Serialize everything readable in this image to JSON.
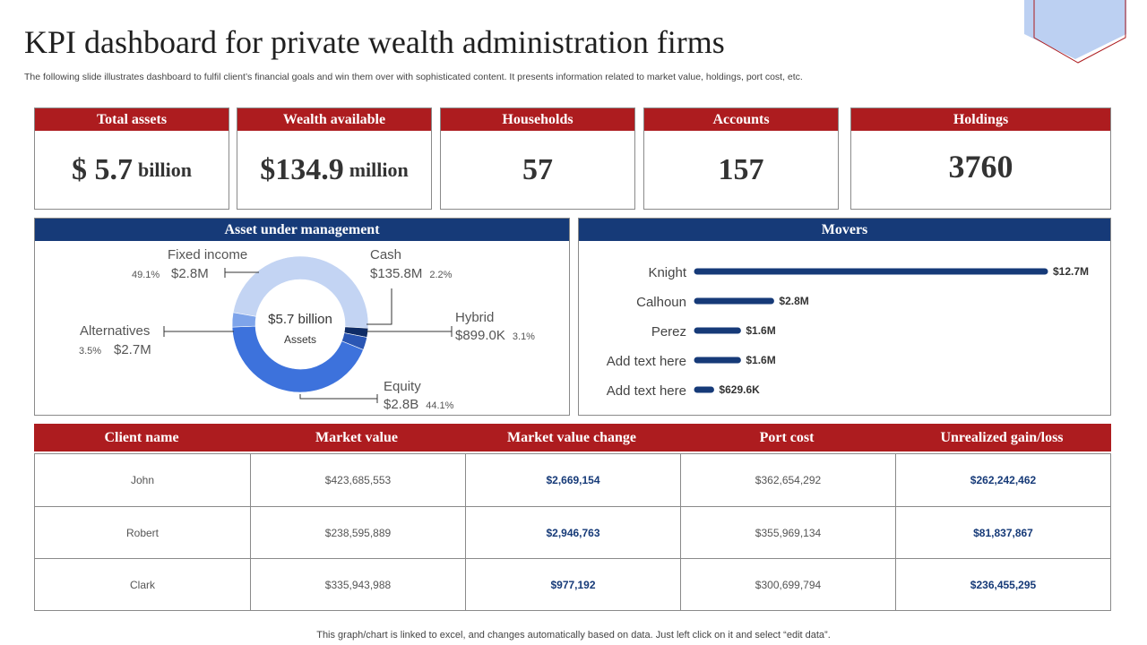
{
  "header": {
    "title": "KPI dashboard for private wealth administration firms",
    "subtitle": "The following slide illustrates dashboard to fulfil client’s financial goals and win them over with sophisticated content. It presents information related to market value, holdings, port cost, etc."
  },
  "kpis": [
    {
      "label": "Total assets",
      "value": "$ 5.7",
      "unit": "billion"
    },
    {
      "label": "Wealth available",
      "value": "$134.9",
      "unit": "million"
    },
    {
      "label": "Households",
      "value": "57",
      "unit": ""
    },
    {
      "label": "Accounts",
      "value": "157",
      "unit": ""
    },
    {
      "label": "Holdings",
      "value": "3760",
      "unit": ""
    }
  ],
  "aum": {
    "title": "Asset under management",
    "center_value": "$5.7 billion",
    "center_label": "Assets"
  },
  "movers": {
    "title": "Movers"
  },
  "chart_data": [
    {
      "type": "pie",
      "title": "Asset under management",
      "slices": [
        {
          "name": "Fixed income",
          "value": 49.1,
          "amount": "$2.8M",
          "pct_label": "49.1%",
          "color": "#c3d4f3"
        },
        {
          "name": "Cash",
          "value": 2.2,
          "amount": "$135.8M",
          "pct_label": "2.2%",
          "color": "#0f2c66"
        },
        {
          "name": "Hybrid",
          "value": 3.1,
          "amount": "$899.0K",
          "pct_label": "3.1%",
          "color": "#2a56b4"
        },
        {
          "name": "Equity",
          "value": 44.1,
          "amount": "$2.8B",
          "pct_label": "44.1%",
          "color": "#3d72dc"
        },
        {
          "name": "Alternatives",
          "value": 3.5,
          "amount": "$2.7M",
          "pct_label": "3.5%",
          "color": "#7ea4ea"
        }
      ]
    },
    {
      "type": "bar",
      "title": "Movers",
      "orientation": "horizontal",
      "categories": [
        "Knight",
        "Calhoun",
        "Perez",
        "Add text here",
        "Add text here"
      ],
      "values": [
        12.7,
        2.8,
        1.6,
        1.6,
        0.6296
      ],
      "value_labels": [
        "$12.7M",
        "$2.8M",
        "$1.6M",
        "$1.6M",
        "$629.6K"
      ],
      "unit": "$M",
      "color": "#163a78"
    }
  ],
  "table": {
    "headers": [
      "Client name",
      "Market value",
      "Market value change",
      "Port cost",
      "Unrealized gain/loss"
    ],
    "rows": [
      [
        "John",
        "$423,685,553",
        "$2,669,154",
        "$362,654,292",
        "$262,242,462"
      ],
      [
        "Robert",
        "$238,595,889",
        "$2,946,763",
        "$355,969,134",
        "$81,837,867"
      ],
      [
        "Clark",
        "$335,943,988",
        "$977,192",
        "$300,699,794",
        "$236,455,295"
      ]
    ]
  },
  "footer": "This graph/chart is linked to excel,  and changes automatically based on data. Just left click on it and select “edit data”."
}
